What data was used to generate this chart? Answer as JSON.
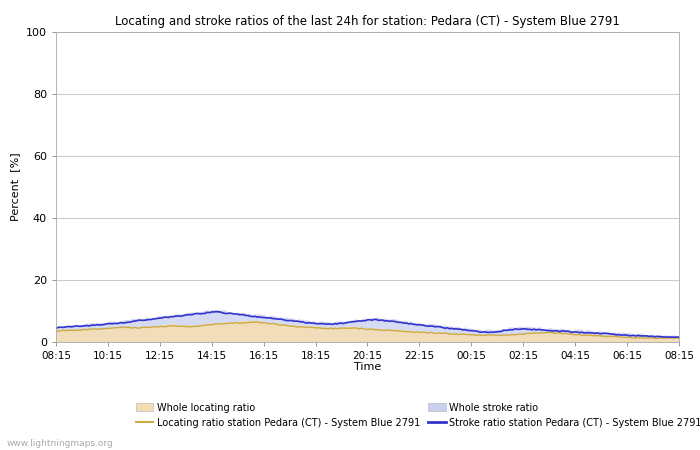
{
  "title": "Locating and stroke ratios of the last 24h for station: Pedara (CT) - System Blue 2791",
  "ylabel": "Percent  [%]",
  "xlabel": "Time",
  "xlabels": [
    "08:15",
    "10:15",
    "12:15",
    "14:15",
    "16:15",
    "18:15",
    "20:15",
    "22:15",
    "00:15",
    "02:15",
    "04:15",
    "06:15",
    "08:15"
  ],
  "ylim": [
    0,
    100
  ],
  "yticks": [
    0,
    20,
    40,
    60,
    80,
    100
  ],
  "background_color": "#ffffff",
  "plot_bg_color": "#ffffff",
  "grid_color": "#cccccc",
  "watermark": "www.lightningmaps.org",
  "whole_loc_base": [
    4.0,
    4.2,
    4.3,
    4.5,
    4.8,
    5.0,
    4.8,
    5.2,
    5.5,
    5.8,
    5.5,
    5.8,
    6.2,
    6.5,
    6.8,
    7.0,
    6.5,
    6.0,
    5.5,
    5.2,
    5.0,
    4.8,
    5.0,
    4.8,
    4.5,
    4.2,
    4.0,
    3.8,
    3.5,
    3.2,
    3.0,
    2.8,
    2.5,
    2.5,
    2.5,
    2.8,
    3.0,
    3.2,
    3.0,
    2.8,
    2.5,
    2.3,
    2.0,
    1.8,
    1.5,
    1.5,
    1.5,
    1.5
  ],
  "whole_stroke_base": [
    5.0,
    5.5,
    5.8,
    6.2,
    6.5,
    7.0,
    7.5,
    8.0,
    8.5,
    9.0,
    9.5,
    10.0,
    10.5,
    10.0,
    9.5,
    9.0,
    8.5,
    8.0,
    7.5,
    7.0,
    6.5,
    6.5,
    7.0,
    7.5,
    8.0,
    7.5,
    7.0,
    6.5,
    6.0,
    5.5,
    5.0,
    4.5,
    4.0,
    4.0,
    4.5,
    5.0,
    4.8,
    4.5,
    4.2,
    4.0,
    3.8,
    3.5,
    3.2,
    3.0,
    2.8,
    2.5,
    2.2,
    2.0
  ],
  "loc_station_base": [
    3.5,
    3.8,
    4.0,
    4.2,
    4.5,
    4.8,
    4.5,
    4.8,
    5.0,
    5.2,
    5.0,
    5.2,
    5.8,
    6.0,
    6.2,
    6.5,
    6.0,
    5.5,
    5.0,
    4.8,
    4.5,
    4.3,
    4.5,
    4.3,
    4.0,
    3.8,
    3.5,
    3.2,
    3.0,
    2.8,
    2.6,
    2.4,
    2.2,
    2.2,
    2.2,
    2.5,
    2.8,
    3.0,
    2.8,
    2.5,
    2.2,
    2.0,
    1.8,
    1.5,
    1.3,
    1.3,
    1.3,
    1.3
  ],
  "stroke_station_base": [
    4.5,
    5.0,
    5.2,
    5.5,
    5.8,
    6.2,
    6.8,
    7.2,
    7.8,
    8.2,
    8.8,
    9.2,
    9.8,
    9.2,
    8.8,
    8.2,
    7.8,
    7.2,
    6.8,
    6.2,
    5.8,
    5.8,
    6.2,
    6.8,
    7.2,
    6.8,
    6.2,
    5.8,
    5.2,
    4.8,
    4.2,
    3.8,
    3.2,
    3.2,
    3.8,
    4.2,
    4.0,
    3.8,
    3.5,
    3.2,
    3.0,
    2.8,
    2.5,
    2.2,
    2.0,
    1.8,
    1.5,
    1.5
  ],
  "legend_fill_loc_color": "#f5deb3",
  "legend_fill_stroke_color": "#c8d0f0",
  "legend_line_loc_color": "#ccaa44",
  "legend_line_stroke_color": "#3333cc",
  "legend_labels": [
    "Whole locating ratio",
    "Locating ratio station Pedara (CT) - System Blue 2791",
    "Whole stroke ratio",
    "Stroke ratio station Pedara (CT) - System Blue 2791"
  ]
}
